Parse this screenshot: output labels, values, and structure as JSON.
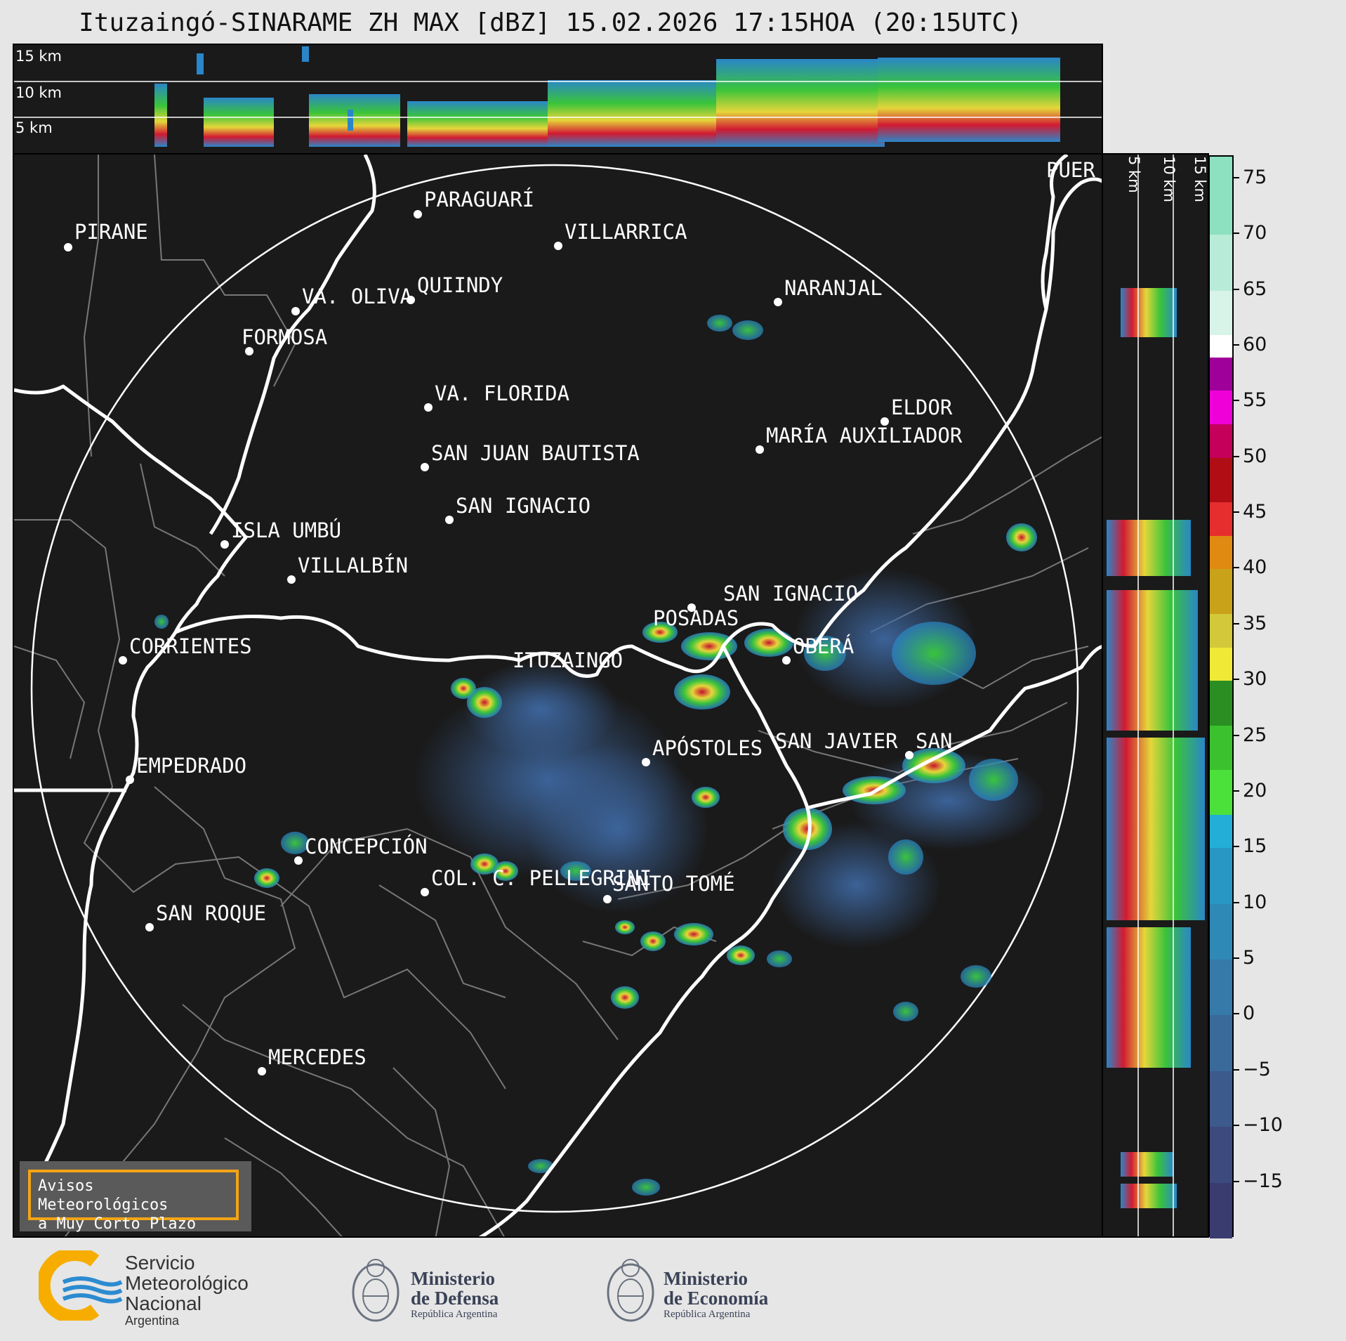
{
  "title": "Ituzaingó-SINARAME ZH MAX [dBZ] 15.02.2026 17:15HOA (20:15UTC)",
  "top_panel": {
    "heights": [
      "15 km",
      "10 km",
      "5 km"
    ]
  },
  "side_panel": {
    "heights": [
      "5 km",
      "10 km",
      "15 km"
    ]
  },
  "cities": [
    {
      "name": "PIRANE"
    },
    {
      "name": "PARAGUARÍ"
    },
    {
      "name": "VILLARRICA"
    },
    {
      "name": "QUIINDY"
    },
    {
      "name": "VA. OLIVA"
    },
    {
      "name": "NARANJAL"
    },
    {
      "name": "FORMOSA"
    },
    {
      "name": "VA. FLORIDA"
    },
    {
      "name": "ELDOR"
    },
    {
      "name": "MARÍA AUXILIADOR"
    },
    {
      "name": "SAN JUAN BAUTISTA"
    },
    {
      "name": "SAN IGNACIO"
    },
    {
      "name": "ISLA UMBÚ"
    },
    {
      "name": "VILLALBÍN"
    },
    {
      "name": "SAN IGNACIO"
    },
    {
      "name": "POSADAS"
    },
    {
      "name": "CORRIENTES"
    },
    {
      "name": "ITUZAINGÓ"
    },
    {
      "name": "OBERÁ"
    },
    {
      "name": "APÓSTOLES"
    },
    {
      "name": "SAN JAVIER"
    },
    {
      "name": "SAN"
    },
    {
      "name": "EMPEDRADO"
    },
    {
      "name": "CONCEPCIÓN"
    },
    {
      "name": "COL. C. PELLEGRINI"
    },
    {
      "name": "SANTO TOMÉ"
    },
    {
      "name": "SAN ROQUE"
    },
    {
      "name": "MERCEDES"
    },
    {
      "name": "PUER"
    }
  ],
  "colorbar": {
    "ticks": [
      "75",
      "70",
      "65",
      "60",
      "55",
      "50",
      "45",
      "40",
      "35",
      "30",
      "25",
      "20",
      "15",
      "10",
      "5",
      "0",
      "−5",
      "−10",
      "−15"
    ],
    "range": [
      -20,
      77
    ]
  },
  "avisos": {
    "line1": "Avisos Meteorológicos",
    "line2": "a Muy Corto Plazo"
  },
  "logos": {
    "smn": {
      "line1": "Servicio",
      "line2": "Meteorológico",
      "line3": "Nacional",
      "line4": "Argentina",
      "colors": {
        "sun": "#f6ad00",
        "waves": "#2c8bd0"
      }
    },
    "defensa": {
      "line1": "Ministerio",
      "line2": "de Defensa",
      "line3": "República Argentina"
    },
    "economia": {
      "line1": "Ministerio",
      "line2": "de Economía",
      "line3": "República Argentina"
    }
  }
}
